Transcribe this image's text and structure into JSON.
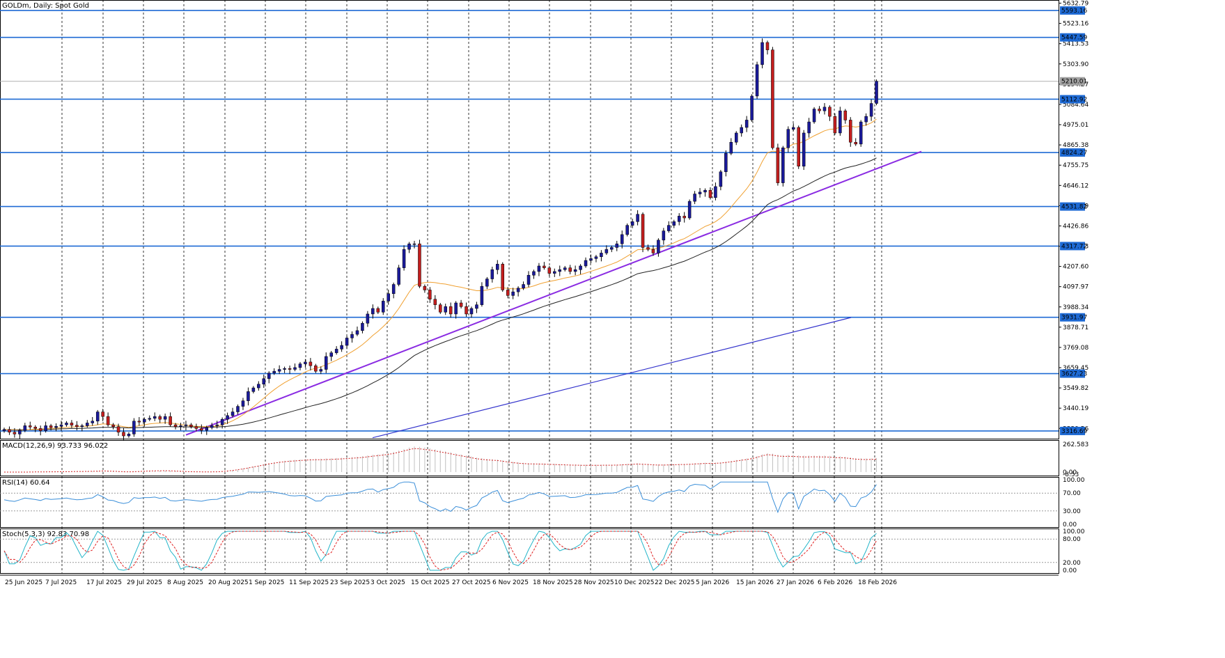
{
  "chart_title": "GOLDm, Daily: Spot Gold",
  "colors": {
    "bull": "#1a1a9a",
    "bear": "#c41e1e",
    "hline": "#1e6ad4",
    "trend": "#8a2be2",
    "channel": "#3333cc",
    "ma_fast": "#f0a030",
    "ma_slow": "#222222",
    "macd_line": "#d02020",
    "macd_hist": "#c0c0c0",
    "rsi": "#3b8fd9",
    "stoch_main": "#23b5c9",
    "stoch_signal": "#e02020",
    "grid": "#000000"
  },
  "chart_data": [
    {
      "type": "candlestick",
      "title": "GOLDm, Daily: Spot Gold",
      "y_ticks": [
        "5632.79",
        "5523.16",
        "5413.53",
        "5303.90",
        "5194.27",
        "5084.64",
        "4975.01",
        "4865.38",
        "4755.75",
        "4646.12",
        "4536.49",
        "4426.86",
        "4317.23",
        "4207.60",
        "4097.97",
        "3988.34",
        "3878.71",
        "3769.08",
        "3659.45",
        "3549.82",
        "3440.19",
        "3330.56"
      ],
      "ylim": [
        3275,
        5650
      ],
      "x_ticks": [
        "25 Jun 2025",
        "7 Jul 2025",
        "17 Jul 2025",
        "29 Jul 2025",
        "8 Aug 2025",
        "20 Aug 2025",
        "1 Sep 2025",
        "11 Sep 2025",
        "23 Sep 2025",
        "3 Oct 2025",
        "15 Oct 2025",
        "27 Oct 2025",
        "6 Nov 2025",
        "18 Nov 2025",
        "28 Nov 2025",
        "10 Dec 2025",
        "22 Dec 2025",
        "5 Jan 2026",
        "15 Jan 2026",
        "27 Jan 2026",
        "6 Feb 2026",
        "18 Feb 2026"
      ],
      "levels": [
        {
          "value": 5593.16,
          "label": "5593.16"
        },
        {
          "value": 5447.59,
          "label": "5447.59"
        },
        {
          "value": 5112.92,
          "label": "5112.92"
        },
        {
          "value": 4824.27,
          "label": "4824.27"
        },
        {
          "value": 4531.82,
          "label": "4531.82"
        },
        {
          "value": 4317.72,
          "label": "4317.72"
        },
        {
          "value": 3931.97,
          "label": "3931.97"
        },
        {
          "value": 3627.23,
          "label": "3627.23"
        },
        {
          "value": 3316.69,
          "label": "3316.69"
        }
      ],
      "current_price": {
        "value": 5210.01,
        "label": "5210.01"
      },
      "trendline": {
        "from": [
          "8 Aug 2025",
          3312
        ],
        "to": [
          "3 Mar 2026",
          4830
        ]
      },
      "channel_line": {
        "from": [
          "17 Jul 2025",
          3210
        ],
        "to": [
          "18 Feb 2026",
          3930
        ]
      },
      "series_close": [
        3325,
        3310,
        3300,
        3320,
        3345,
        3338,
        3330,
        3318,
        3345,
        3335,
        3342,
        3350,
        3360,
        3348,
        3340,
        3345,
        3360,
        3370,
        3420,
        3395,
        3350,
        3340,
        3310,
        3290,
        3300,
        3370,
        3365,
        3380,
        3385,
        3395,
        3380,
        3395,
        3350,
        3340,
        3345,
        3350,
        3340,
        3330,
        3320,
        3335,
        3345,
        3350,
        3380,
        3400,
        3420,
        3450,
        3480,
        3530,
        3550,
        3570,
        3600,
        3630,
        3640,
        3650,
        3655,
        3650,
        3660,
        3680,
        3690,
        3670,
        3640,
        3650,
        3720,
        3740,
        3760,
        3780,
        3820,
        3840,
        3860,
        3900,
        3950,
        3980,
        3960,
        4020,
        4060,
        4110,
        4200,
        4300,
        4330,
        4330,
        4100,
        4080,
        4030,
        4000,
        3960,
        3990,
        3950,
        4010,
        3990,
        3950,
        3980,
        4000,
        4100,
        4140,
        4190,
        4220,
        4080,
        4050,
        4070,
        4090,
        4110,
        4160,
        4180,
        4210,
        4200,
        4170,
        4180,
        4190,
        4200,
        4180,
        4190,
        4210,
        4240,
        4250,
        4260,
        4280,
        4300,
        4310,
        4330,
        4380,
        4430,
        4450,
        4490,
        4310,
        4300,
        4280,
        4350,
        4400,
        4430,
        4450,
        4480,
        4470,
        4560,
        4600,
        4610,
        4620,
        4580,
        4640,
        4720,
        4820,
        4880,
        4930,
        4960,
        5000,
        5130,
        5300,
        5420,
        5380,
        4850,
        4660,
        4850,
        4950,
        4960,
        4750,
        4930,
        4990,
        5060,
        5050,
        5070,
        5020,
        4930,
        5050,
        5000,
        4880,
        4870,
        4990,
        5020,
        5090,
        5210
      ],
      "ma_fast": [
        3325,
        3323,
        3322,
        3320,
        3322,
        3325,
        3326,
        3327,
        3328,
        3330,
        3332,
        3334,
        3336,
        3338,
        3340,
        3341,
        3343,
        3345,
        3350,
        3355,
        3353,
        3350,
        3345,
        3340,
        3336,
        3340,
        3345,
        3350,
        3355,
        3358,
        3360,
        3362,
        3360,
        3356,
        3352,
        3348,
        3344,
        3342,
        3340,
        3340,
        3341,
        3343,
        3350,
        3360,
        3372,
        3387,
        3405,
        3425,
        3447,
        3470,
        3494,
        3518,
        3540,
        3560,
        3578,
        3594,
        3608,
        3622,
        3636,
        3648,
        3657,
        3664,
        3675,
        3687,
        3700,
        3714,
        3730,
        3746,
        3764,
        3784,
        3808,
        3834,
        3856,
        3882,
        3910,
        3942,
        3980,
        4024,
        4068,
        4105,
        4115,
        4120,
        4122,
        4120,
        4115,
        4112,
        4106,
        4100,
        4095,
        4088,
        4082,
        4076,
        4076,
        4080,
        4086,
        4094,
        4092,
        4088,
        4086,
        4086,
        4088,
        4094,
        4102,
        4112,
        4120,
        4126,
        4132,
        4138,
        4145,
        4150,
        4156,
        4163,
        4172,
        4181,
        4190,
        4200,
        4210,
        4220,
        4231,
        4246,
        4263,
        4280,
        4298,
        4300,
        4302,
        4302,
        4306,
        4314,
        4324,
        4335,
        4348,
        4358,
        4374,
        4391,
        4408,
        4424,
        4435,
        4450,
        4470,
        4497,
        4528,
        4562,
        4595,
        4628,
        4668,
        4718,
        4775,
        4823,
        4832,
        4828,
        4838,
        4855,
        4870,
        4873,
        4885,
        4899,
        4915,
        4928,
        4942,
        4950,
        4952,
        4962,
        4968,
        4966,
        4962,
        4967,
        4973,
        4985,
        5005
      ],
      "ma_slow": [
        3325,
        3324,
        3323,
        3323,
        3323,
        3324,
        3324,
        3325,
        3325,
        3326,
        3327,
        3328,
        3329,
        3330,
        3330,
        3331,
        3332,
        3333,
        3335,
        3336,
        3336,
        3336,
        3335,
        3334,
        3333,
        3334,
        3335,
        3336,
        3337,
        3338,
        3339,
        3340,
        3340,
        3339,
        3339,
        3339,
        3338,
        3338,
        3337,
        3337,
        3338,
        3338,
        3340,
        3342,
        3345,
        3349,
        3353,
        3359,
        3365,
        3372,
        3379,
        3387,
        3395,
        3403,
        3411,
        3419,
        3427,
        3435,
        3443,
        3451,
        3458,
        3465,
        3473,
        3482,
        3491,
        3501,
        3512,
        3523,
        3535,
        3548,
        3562,
        3577,
        3591,
        3607,
        3623,
        3641,
        3660,
        3682,
        3704,
        3725,
        3740,
        3754,
        3767,
        3779,
        3790,
        3801,
        3811,
        3822,
        3832,
        3841,
        3851,
        3860,
        3871,
        3883,
        3895,
        3908,
        3917,
        3925,
        3934,
        3942,
        3951,
        3961,
        3971,
        3982,
        3992,
        4001,
        4010,
        4019,
        4028,
        4036,
        4044,
        4053,
        4062,
        4071,
        4080,
        4090,
        4099,
        4109,
        4119,
        4130,
        4142,
        4155,
        4168,
        4174,
        4180,
        4185,
        4192,
        4200,
        4208,
        4217,
        4227,
        4236,
        4248,
        4260,
        4273,
        4285,
        4296,
        4309,
        4324,
        4342,
        4362,
        4383,
        4404,
        4426,
        4451,
        4480,
        4512,
        4542,
        4558,
        4569,
        4584,
        4600,
        4616,
        4626,
        4640,
        4654,
        4669,
        4683,
        4697,
        4709,
        4718,
        4730,
        4740,
        4747,
        4753,
        4762,
        4771,
        4781,
        4795
      ],
      "panes": {
        "macd": {
          "label": "MACD(12,26,9) 93.733 96.022",
          "ticks": [
            "262.583",
            "0.00",
            "-8.53"
          ]
        },
        "rsi": {
          "label": "RSI(14) 60.64",
          "ticks": [
            "100.00",
            "70.00",
            "30.00",
            "0.00"
          ]
        },
        "stoch": {
          "label": "Stoch(5,3,3) 92.83 70.98",
          "ticks": [
            "100.00",
            "80.00",
            "20.00",
            "0.00"
          ]
        }
      }
    }
  ]
}
